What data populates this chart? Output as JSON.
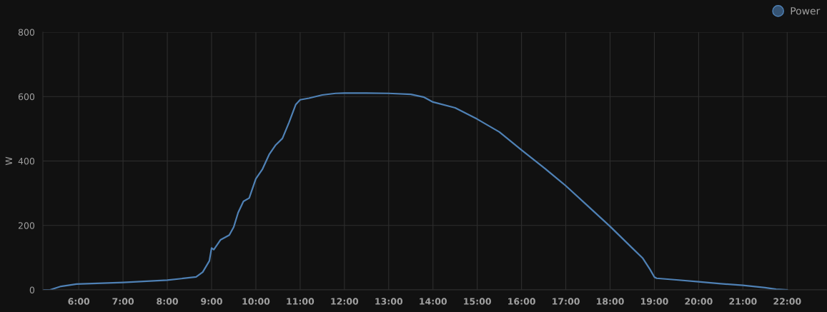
{
  "chart_data": {
    "type": "line",
    "ylabel": "W",
    "xlim": [
      5.19,
      22.89
    ],
    "ylim": [
      0,
      800
    ],
    "xticks": [
      {
        "value": 6,
        "label": "6:00"
      },
      {
        "value": 7,
        "label": "7:00"
      },
      {
        "value": 8,
        "label": "8:00"
      },
      {
        "value": 9,
        "label": "9:00"
      },
      {
        "value": 10,
        "label": "10:00"
      },
      {
        "value": 11,
        "label": "11:00"
      },
      {
        "value": 12,
        "label": "12:00"
      },
      {
        "value": 13,
        "label": "13:00"
      },
      {
        "value": 14,
        "label": "14:00"
      },
      {
        "value": 15,
        "label": "15:00"
      },
      {
        "value": 16,
        "label": "16:00"
      },
      {
        "value": 17,
        "label": "17:00"
      },
      {
        "value": 18,
        "label": "18:00"
      },
      {
        "value": 19,
        "label": "19:00"
      },
      {
        "value": 20,
        "label": "20:00"
      },
      {
        "value": 21,
        "label": "21:00"
      },
      {
        "value": 22,
        "label": "22:00"
      }
    ],
    "yticks": [
      0,
      200,
      400,
      600,
      800
    ],
    "grid": true,
    "legend": "top right",
    "marker": "none",
    "line_style": "solid",
    "x": [
      5.19,
      5.35,
      5.6,
      5.95,
      7.0,
      8.0,
      8.65,
      8.8,
      8.95,
      9.0,
      9.05,
      9.2,
      9.4,
      9.5,
      9.6,
      9.72,
      9.85,
      10.0,
      10.15,
      10.3,
      10.45,
      10.6,
      10.75,
      10.9,
      11.0,
      11.2,
      11.5,
      11.8,
      12.0,
      12.5,
      13.0,
      13.5,
      13.8,
      14.0,
      14.5,
      15.0,
      15.5,
      16.0,
      16.5,
      17.0,
      17.5,
      18.0,
      18.5,
      18.74,
      18.9,
      19.0,
      19.05,
      19.5,
      20.0,
      20.5,
      21.0,
      21.5,
      21.75,
      22.0
    ],
    "series": [
      {
        "name": "Power",
        "color": "#4f81b5",
        "values": [
          0,
          0,
          11,
          18,
          23,
          30,
          40,
          55,
          90,
          130,
          125,
          155,
          170,
          195,
          240,
          275,
          285,
          345,
          375,
          420,
          450,
          470,
          520,
          575,
          590,
          595,
          605,
          610,
          611,
          611,
          610,
          607,
          598,
          583,
          565,
          530,
          490,
          434,
          380,
          323,
          260,
          197,
          130,
          98,
          64,
          40,
          36,
          31,
          25,
          19,
          14,
          7,
          2,
          0
        ]
      }
    ]
  }
}
